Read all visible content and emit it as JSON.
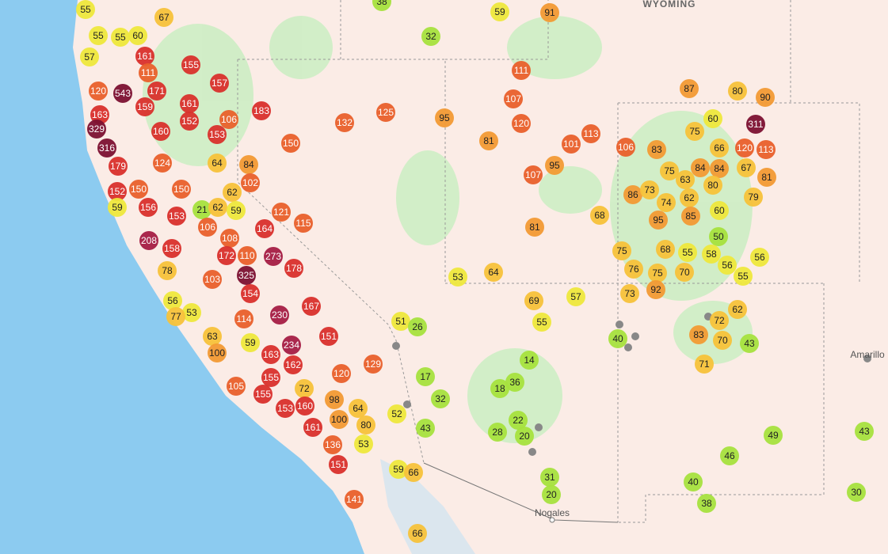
{
  "map": {
    "labels": [
      "WYOMING",
      "Amarillo",
      "Nogales"
    ],
    "markers": [
      55,
      67,
      55,
      55,
      60,
      57,
      161,
      155,
      111,
      157,
      120,
      543,
      171,
      163,
      159,
      161,
      152,
      329,
      160,
      153,
      106,
      183,
      132,
      125,
      150,
      316,
      179,
      124,
      64,
      84,
      102,
      152,
      150,
      150,
      62,
      59,
      156,
      153,
      21,
      62,
      59,
      121,
      115,
      106,
      164,
      108,
      208,
      158,
      172,
      110,
      273,
      178,
      78,
      103,
      325,
      154,
      56,
      53,
      77,
      114,
      230,
      167,
      63,
      234,
      151,
      100,
      59,
      163,
      162,
      129,
      120,
      155,
      105,
      72,
      155,
      153,
      160,
      98,
      64,
      100,
      80,
      161,
      53,
      136,
      151,
      141,
      59,
      66,
      66,
      51,
      26,
      17,
      32,
      52,
      43,
      53,
      64,
      38,
      59,
      91,
      32,
      95,
      111,
      107,
      120,
      81,
      101,
      113,
      95,
      107,
      68,
      81,
      69,
      55,
      57,
      14,
      36,
      18,
      22,
      28,
      20,
      31,
      20,
      40,
      87,
      80,
      90,
      60,
      75,
      311,
      106,
      83,
      66,
      120,
      113,
      75,
      84,
      84,
      67,
      81,
      63,
      80,
      86,
      73,
      74,
      62,
      79,
      85,
      60,
      95,
      50,
      75,
      68,
      55,
      58,
      56,
      76,
      75,
      70,
      56,
      55,
      73,
      92,
      62,
      72,
      83,
      70,
      43,
      71,
      49,
      43,
      46,
      40,
      38,
      30
    ]
  }
}
